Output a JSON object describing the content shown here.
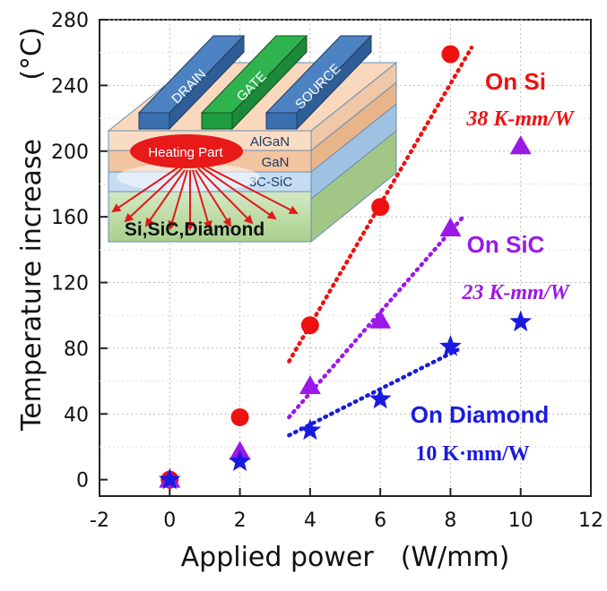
{
  "chart_data": {
    "type": "scatter",
    "xlabel": "Applied power　(W/mm)",
    "ylabel": "Temperature increase",
    "yunit": "(°C)",
    "xlim": [
      -2,
      12
    ],
    "ylim": [
      -10,
      280
    ],
    "xticks": [
      -2,
      0,
      2,
      4,
      6,
      8,
      10,
      12
    ],
    "yticks": [
      0,
      40,
      80,
      120,
      160,
      200,
      240,
      280
    ],
    "series": [
      {
        "name": "On Si",
        "color": "#ee1111",
        "marker": "circle",
        "x": [
          0,
          2,
          4,
          6,
          8
        ],
        "y": [
          0,
          38,
          94,
          166,
          259
        ],
        "fit": {
          "x": [
            3.4,
            8.6
          ],
          "y": [
            72,
            263
          ]
        },
        "label": "On Si",
        "slope": "38 K-mm/W"
      },
      {
        "name": "On SiC",
        "color": "#9b19e8",
        "marker": "triangle",
        "x": [
          0,
          2,
          4,
          6,
          8,
          10
        ],
        "y": [
          0,
          17,
          57,
          97,
          153,
          203
        ],
        "fit": {
          "x": [
            3.4,
            8.4
          ],
          "y": [
            38,
            161
          ]
        },
        "label": "On SiC",
        "slope": "23 K-mm/W"
      },
      {
        "name": "On Diamond",
        "color": "#1a1ae0",
        "marker": "star",
        "x": [
          0,
          2,
          4,
          6,
          8,
          10
        ],
        "y": [
          0,
          11,
          30,
          49,
          81,
          96
        ],
        "fit": {
          "x": [
            3.4,
            8.2
          ],
          "y": [
            27,
            79
          ]
        },
        "label": "On Diamond",
        "slope": "10 K·mm/W"
      }
    ]
  },
  "inset": {
    "electrodes": [
      "DRAIN",
      "GATE",
      "SOURCE"
    ],
    "layers": [
      "AlGaN",
      "GaN",
      "3C-SiC"
    ],
    "heating": "Heating Part",
    "substrate": "Si,SiC,Diamond"
  }
}
